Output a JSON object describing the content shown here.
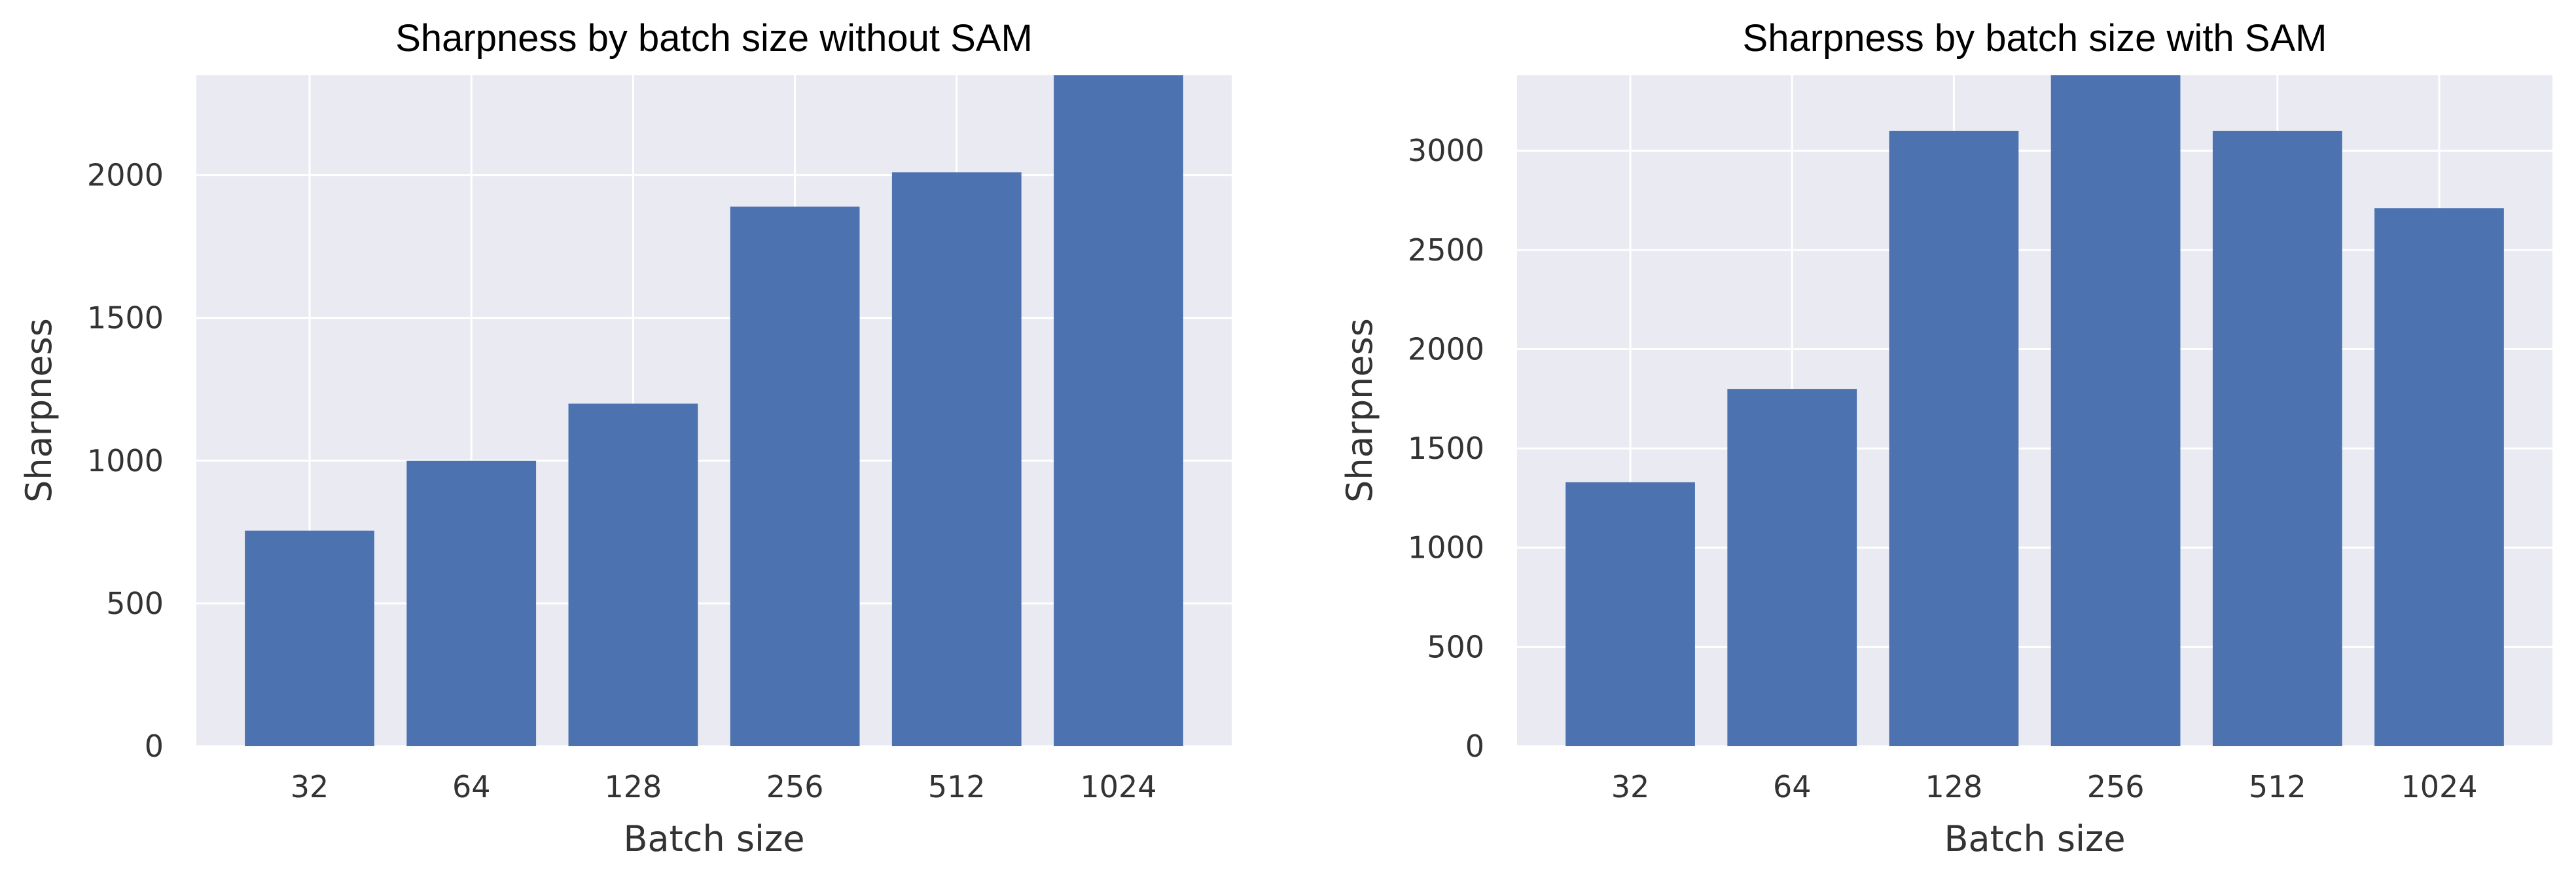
{
  "chart_data": [
    {
      "type": "bar",
      "title": "Sharpness by batch size without SAM",
      "xlabel": "Batch size",
      "ylabel": "Sharpness",
      "categories": [
        "32",
        "64",
        "128",
        "256",
        "512",
        "1024"
      ],
      "values": [
        755,
        1000,
        1200,
        1890,
        2010,
        2350
      ],
      "ylim": [
        0,
        2350
      ],
      "yticks": [
        0,
        500,
        1000,
        1500,
        2000
      ],
      "grid": true,
      "bar_color": "#4c72b0",
      "background_color": "#eaeaf2"
    },
    {
      "type": "bar",
      "title": "Sharpness by batch size with SAM",
      "xlabel": "Batch size",
      "ylabel": "Sharpness",
      "categories": [
        "32",
        "64",
        "128",
        "256",
        "512",
        "1024"
      ],
      "values": [
        1330,
        1800,
        3100,
        3380,
        3100,
        2710
      ],
      "ylim": [
        0,
        3380
      ],
      "yticks": [
        0,
        500,
        1000,
        1500,
        2000,
        2500,
        3000
      ],
      "grid": true,
      "bar_color": "#4c72b0",
      "background_color": "#eaeaf2"
    }
  ]
}
